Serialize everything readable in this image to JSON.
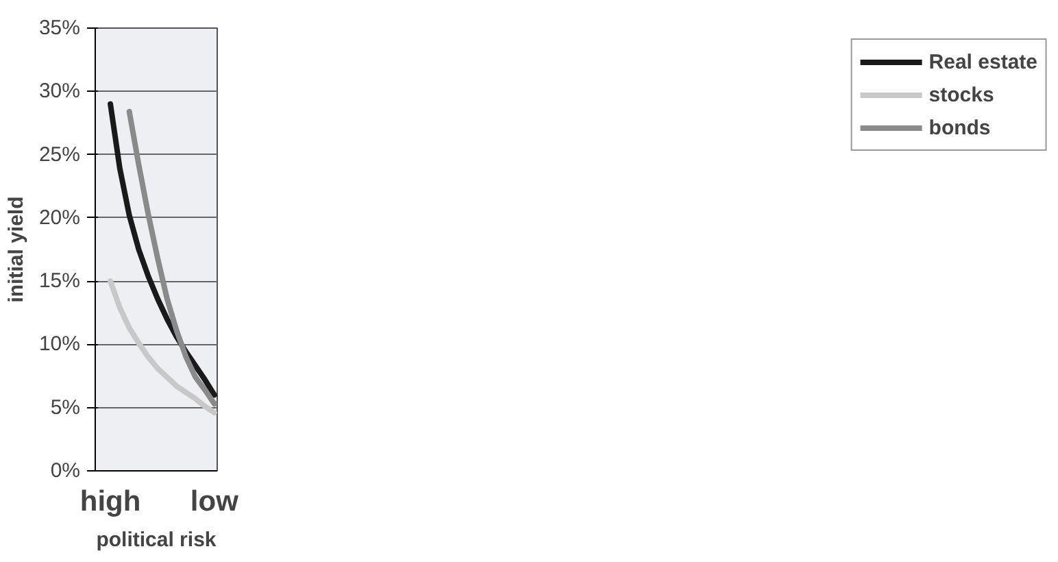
{
  "chart_data": {
    "type": "line",
    "xlabel": "political risk",
    "ylabel": "initial yield",
    "categories": [
      "high",
      null,
      null,
      null,
      null,
      null,
      null,
      null,
      null,
      null,
      null,
      "low"
    ],
    "series": [
      {
        "name": "Real estate",
        "color": "#1a1a1a",
        "values": [
          29.0,
          23.9,
          20.2,
          17.5,
          15.4,
          13.6,
          12.0,
          10.6,
          9.4,
          8.3,
          7.2,
          6.0
        ]
      },
      {
        "name": "stocks",
        "color": "#c8c8c8",
        "values": [
          15.0,
          12.9,
          11.3,
          10.1,
          9.0,
          8.1,
          7.4,
          6.7,
          6.2,
          5.7,
          5.1,
          4.6
        ]
      },
      {
        "name": "bonds",
        "color": "#8a8a8a",
        "values": [
          null,
          null,
          28.4,
          24.2,
          20.3,
          16.8,
          13.6,
          11.1,
          9.0,
          7.4,
          6.4,
          5.3
        ]
      }
    ],
    "ylim": [
      0,
      35
    ],
    "yticks": [
      {
        "value": 0,
        "label": "0%"
      },
      {
        "value": 5,
        "label": "5%"
      },
      {
        "value": 10,
        "label": "10%"
      },
      {
        "value": 15,
        "label": "15%"
      },
      {
        "value": 20,
        "label": "20%"
      },
      {
        "value": 25,
        "label": "25%"
      },
      {
        "value": 30,
        "label": "30%"
      },
      {
        "value": 35,
        "label": "35%"
      }
    ],
    "grid": "y",
    "legend": "right",
    "marker": "none",
    "line_style": "solid"
  }
}
